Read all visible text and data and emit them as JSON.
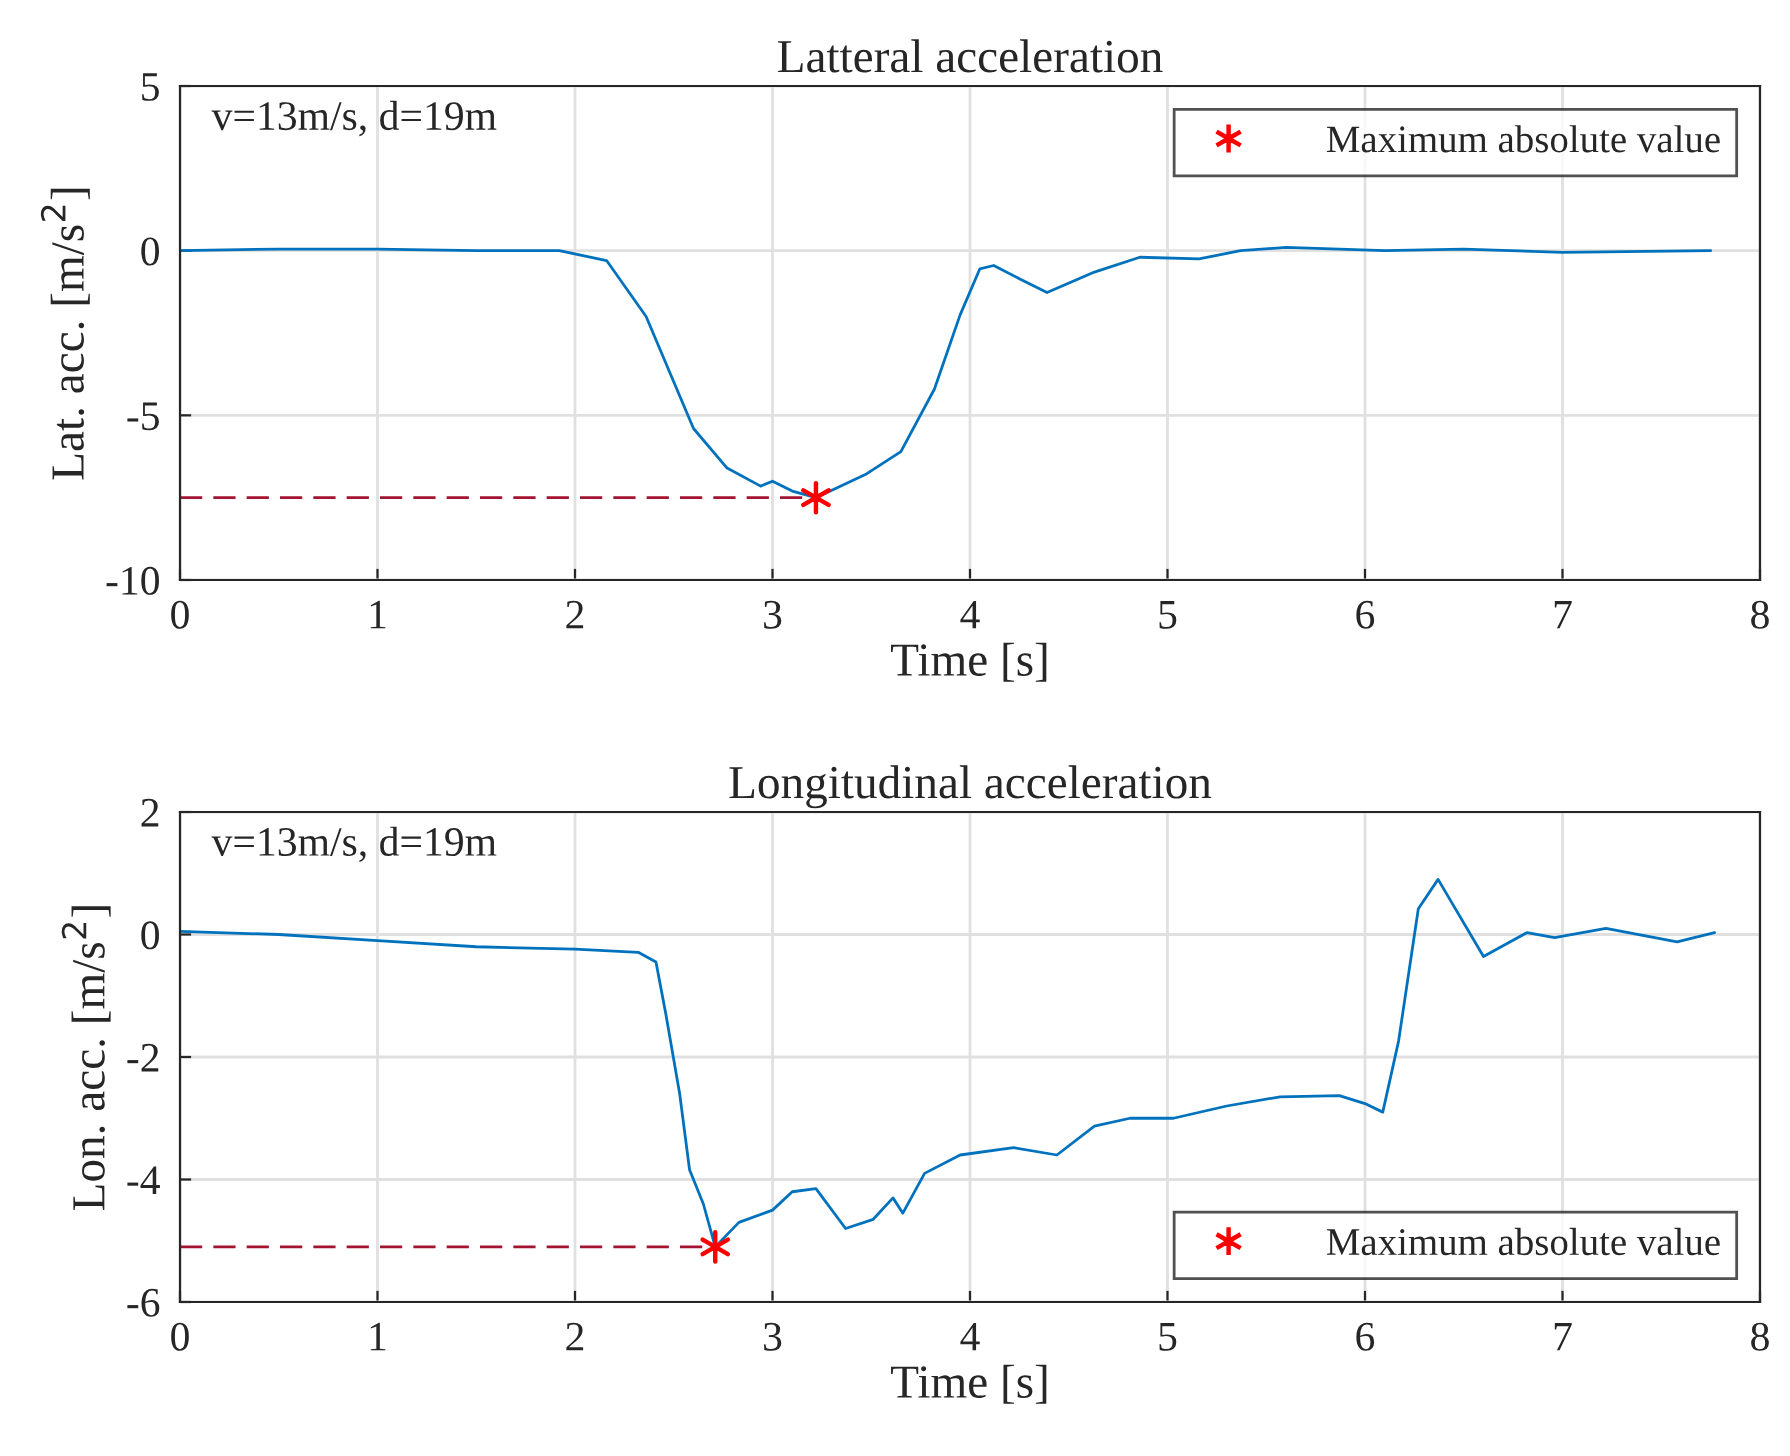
{
  "chart_data": [
    {
      "type": "line",
      "title": "Latteral acceleration",
      "xlabel": "Time [s]",
      "ylabel": "Lat. acc. [m/s$^{2}$]",
      "xlim": [
        0,
        8
      ],
      "xticks": [
        0,
        1,
        2,
        3,
        4,
        5,
        6,
        7,
        8
      ],
      "ylim": [
        -10,
        5
      ],
      "yticks": [
        -10,
        -5,
        0,
        5
      ],
      "grid": true,
      "legend": "top right",
      "annotations": [
        "v=13m/s, d=19m"
      ],
      "series": [
        {
          "color": "#0072bd",
          "x": [
            0,
            0.5,
            1,
            1.5,
            1.92,
            2.16,
            2.36,
            2.6,
            2.77,
            2.94,
            3.0,
            3.1,
            3.22,
            3.47,
            3.65,
            3.82,
            3.95,
            4.05,
            4.12,
            4.25,
            4.39,
            4.63,
            4.86,
            5.16,
            5.37,
            5.6,
            6.1,
            6.5,
            7.0,
            7.75
          ],
          "values": [
            0,
            0.05,
            0.05,
            0,
            0,
            -0.3,
            -2.0,
            -5.4,
            -6.6,
            -7.15,
            -7.0,
            -7.3,
            -7.5,
            -6.8,
            -6.1,
            -4.2,
            -1.95,
            -0.55,
            -0.45,
            -0.85,
            -1.27,
            -0.65,
            -0.2,
            -0.25,
            0,
            0.1,
            0,
            0.05,
            -0.05,
            0
          ]
        },
        {
          "type": "line",
          "color": "#a2142f",
          "line_style": "dashed",
          "x": [
            0,
            3.22
          ],
          "values": [
            -7.5,
            -7.5
          ]
        },
        {
          "type": "scatter",
          "name": "Maximum absolute value",
          "color": "#ff0000",
          "marker": "cross",
          "x": [
            3.22
          ],
          "values": [
            -7.5
          ]
        }
      ]
    },
    {
      "type": "line",
      "title": "Longitudinal acceleration",
      "xlabel": "Time [s]",
      "ylabel": "Lon. acc. [m/s$^{2}$]",
      "xlim": [
        0,
        8
      ],
      "xticks": [
        0,
        1,
        2,
        3,
        4,
        5,
        6,
        7,
        8
      ],
      "ylim": [
        -6,
        2
      ],
      "yticks": [
        -6,
        -4,
        -2,
        0,
        2
      ],
      "grid": true,
      "legend": "bottom right",
      "annotations": [
        "v=13m/s, d=19m"
      ],
      "series": [
        {
          "color": "#0072bd",
          "x": [
            0,
            0.5,
            1,
            1.5,
            2,
            2.32,
            2.41,
            2.46,
            2.53,
            2.58,
            2.65,
            2.71,
            2.83,
            3.0,
            3.1,
            3.22,
            3.37,
            3.51,
            3.61,
            3.66,
            3.77,
            3.95,
            4.22,
            4.44,
            4.63,
            4.81,
            5.03,
            5.3,
            5.57,
            5.87,
            6.0,
            6.09,
            6.17,
            6.27,
            6.37,
            6.6,
            6.82,
            6.96,
            7.22,
            7.58,
            7.77
          ],
          "values": [
            0.05,
            0,
            -0.1,
            -0.2,
            -0.24,
            -0.29,
            -0.45,
            -1.3,
            -2.6,
            -3.84,
            -4.4,
            -5.1,
            -4.7,
            -4.5,
            -4.2,
            -4.15,
            -4.8,
            -4.65,
            -4.3,
            -4.55,
            -3.9,
            -3.6,
            -3.48,
            -3.6,
            -3.13,
            -3.0,
            -3.0,
            -2.8,
            -2.65,
            -2.63,
            -2.76,
            -2.9,
            -1.74,
            0.42,
            0.9,
            -0.36,
            0.03,
            -0.05,
            0.1,
            -0.12,
            0.03
          ]
        },
        {
          "type": "line",
          "color": "#a2142f",
          "line_style": "dashed",
          "x": [
            0,
            2.71
          ],
          "values": [
            -5.1,
            -5.1
          ]
        },
        {
          "type": "scatter",
          "name": "Maximum absolute value",
          "color": "#ff0000",
          "marker": "cross",
          "x": [
            2.71
          ],
          "values": [
            -5.1
          ]
        }
      ]
    }
  ]
}
